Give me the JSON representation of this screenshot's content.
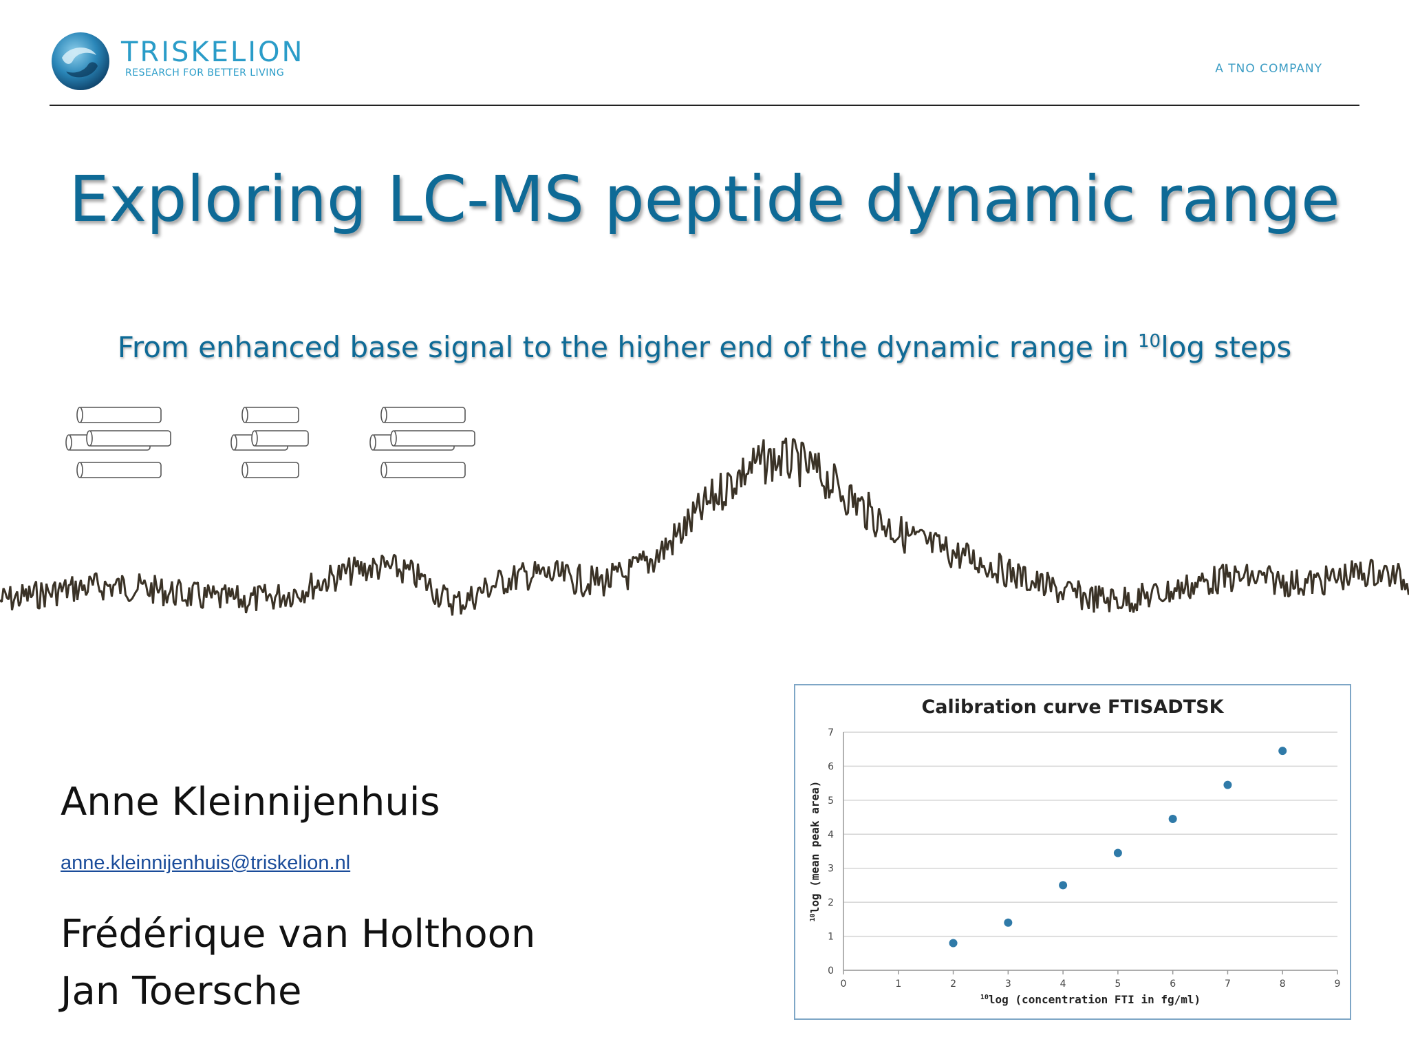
{
  "header": {
    "brand_name": "TRISKELION",
    "brand_tagline": "RESEARCH FOR BETTER LIVING",
    "company_note": "A TNO COMPANY"
  },
  "slide": {
    "title": "Exploring LC-MS peptide dynamic range",
    "subtitle_before": "From enhanced base signal to the higher end of the dynamic range in ",
    "subtitle_sup": "10",
    "subtitle_after": "log steps"
  },
  "authors": {
    "primary": "Anne Kleinnijenhuis",
    "primary_email": "anne.kleinnijenhuis@triskelion.nl",
    "second": "Frédérique van Holthoon",
    "third": "Jan Toersche"
  },
  "colors": {
    "title": "#0e6a96",
    "brand": "#2a9cc8",
    "marker": "#2f7aa8",
    "trace": "#3a3226"
  },
  "chart_data": {
    "type": "scatter",
    "title": "Calibration curve FTISADTSK",
    "xlabel_sup": "10",
    "xlabel": "log (concentration FTI in fg/ml)",
    "ylabel_sup": "10",
    "ylabel": "log (mean peak area)",
    "xlim": [
      0,
      9
    ],
    "ylim": [
      0,
      7
    ],
    "xticks": [
      0,
      1,
      2,
      3,
      4,
      5,
      6,
      7,
      8,
      9
    ],
    "yticks": [
      0,
      1,
      2,
      3,
      4,
      5,
      6,
      7
    ],
    "grid": "horizontal",
    "x": [
      2,
      3,
      4,
      5,
      6,
      7,
      8
    ],
    "y": [
      0.8,
      1.4,
      2.5,
      3.45,
      4.45,
      5.45,
      6.45
    ]
  }
}
